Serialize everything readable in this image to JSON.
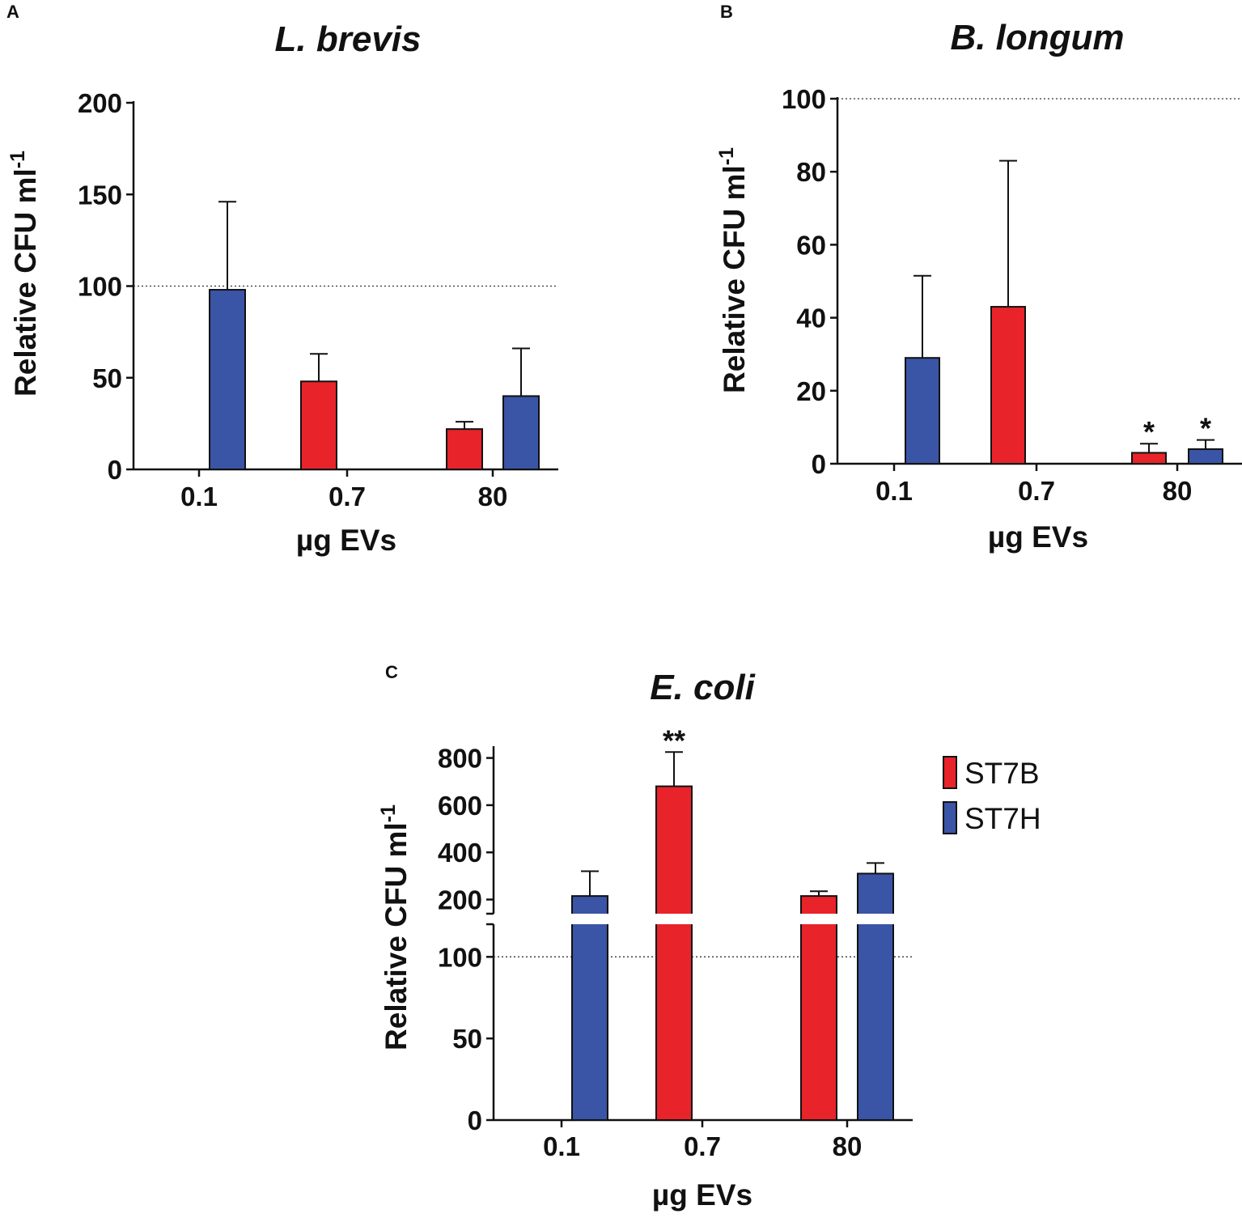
{
  "colors": {
    "ST7B": "#e8232a",
    "ST7H": "#3a54a6"
  },
  "legend": {
    "entries": [
      {
        "series": "ST7B",
        "label": "ST7B"
      },
      {
        "series": "ST7H",
        "label": "ST7H"
      }
    ]
  },
  "chart_data": [
    {
      "panel": "A",
      "type": "bar",
      "title": "L. brevis",
      "xlabel": "µg EVs",
      "ylabel": "Relative CFU ml-1",
      "ylabel_main": "Relative CFU ml",
      "ylabel_sup": "-1",
      "categories": [
        "0.1",
        "0.7",
        "80"
      ],
      "ylim": [
        0,
        200
      ],
      "yticks": [
        "0",
        "50",
        "100",
        "150",
        "200"
      ],
      "reference_line": 100,
      "series": [
        {
          "name": "ST7B",
          "values": [
            null,
            48,
            22
          ],
          "errors": [
            null,
            15,
            4
          ],
          "significance": [
            null,
            "",
            ""
          ]
        },
        {
          "name": "ST7H",
          "values": [
            98,
            null,
            40
          ],
          "errors": [
            48,
            null,
            26
          ],
          "significance": [
            "",
            null,
            ""
          ]
        }
      ]
    },
    {
      "panel": "B",
      "type": "bar",
      "title": "B. longum",
      "xlabel": "µg EVs",
      "ylabel": "Relative CFU ml-1",
      "ylabel_main": "Relative CFU ml",
      "ylabel_sup": "-1",
      "categories": [
        "0.1",
        "0.7",
        "80"
      ],
      "ylim": [
        0,
        100
      ],
      "yticks": [
        "0",
        "20",
        "40",
        "60",
        "80",
        "100"
      ],
      "reference_line": 100,
      "series": [
        {
          "name": "ST7B",
          "values": [
            null,
            43,
            3
          ],
          "errors": [
            null,
            40,
            2.5
          ],
          "significance": [
            null,
            "",
            "*"
          ]
        },
        {
          "name": "ST7H",
          "values": [
            29,
            null,
            4
          ],
          "errors": [
            22.5,
            null,
            2.5
          ],
          "significance": [
            "",
            null,
            "*"
          ]
        }
      ]
    },
    {
      "panel": "C",
      "type": "bar",
      "title": "E. coli",
      "xlabel": "µg EVs",
      "ylabel": "Relative CFU ml-1",
      "ylabel_main": "Relative CFU ml",
      "ylabel_sup": "-1",
      "categories": [
        "0.1",
        "0.7",
        "80"
      ],
      "ylim": [
        0,
        800
      ],
      "axis_break": [
        120,
        140
      ],
      "lower_segment_range": [
        0,
        120
      ],
      "upper_segment_range": [
        140,
        850
      ],
      "yticks": [
        "0",
        "50",
        "100",
        "200",
        "400",
        "600",
        "800"
      ],
      "reference_line": 100,
      "series": [
        {
          "name": "ST7B",
          "values": [
            null,
            680,
            215
          ],
          "errors": [
            null,
            145,
            20
          ],
          "significance": [
            null,
            "**",
            ""
          ]
        },
        {
          "name": "ST7H",
          "values": [
            215,
            null,
            310
          ],
          "errors": [
            105,
            null,
            45
          ],
          "significance": [
            "",
            null,
            ""
          ]
        }
      ]
    }
  ]
}
